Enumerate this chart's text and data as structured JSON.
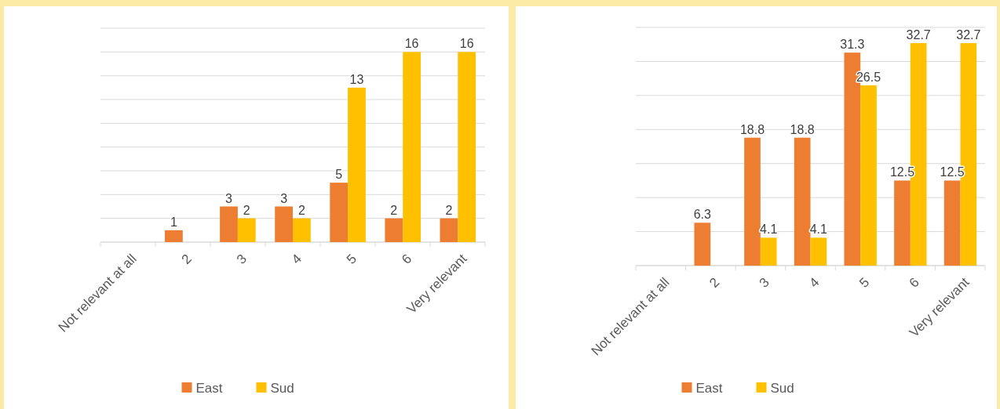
{
  "chart_data": [
    {
      "type": "bar",
      "categories": [
        "Not relevant at all",
        "2",
        "3",
        "4",
        "5",
        "6",
        "Very relevant"
      ],
      "series": [
        {
          "name": "East",
          "color": "#ed7d31",
          "values": [
            null,
            1,
            3,
            3,
            5,
            2,
            2
          ]
        },
        {
          "name": "Sud",
          "color": "#ffc000",
          "values": [
            null,
            null,
            2,
            2,
            13,
            16,
            16
          ]
        }
      ],
      "ylim": [
        0,
        18
      ],
      "yticks": [
        {
          "value": 0,
          "label": null
        },
        {
          "value": 2,
          "label": null
        },
        {
          "value": 4,
          "label": null
        },
        {
          "value": 6,
          "label": null
        },
        {
          "value": 8,
          "label": null
        },
        {
          "value": 10,
          "label": null
        },
        {
          "value": 12,
          "label": null
        },
        {
          "value": 14,
          "label": null
        },
        {
          "value": 16,
          "label": null
        },
        {
          "value": 18,
          "label": null
        }
      ],
      "tick_labels": "x",
      "grid": "y",
      "legend": "bottom",
      "data_labels": true
    },
    {
      "type": "bar",
      "categories": [
        "Not relevant at all",
        "2",
        "3",
        "4",
        "5",
        "6",
        "Very relevant"
      ],
      "series": [
        {
          "name": "East",
          "color": "#ed7d31",
          "values": [
            null,
            6.3,
            18.8,
            18.8,
            31.3,
            12.5,
            12.5
          ]
        },
        {
          "name": "Sud",
          "color": "#ffc000",
          "values": [
            null,
            null,
            4.1,
            4.1,
            26.5,
            32.7,
            32.7
          ]
        }
      ],
      "ylim": [
        0,
        35
      ],
      "yticks": [
        {
          "value": 0,
          "label": null
        },
        {
          "value": 5,
          "label": null
        },
        {
          "value": 10,
          "label": null
        },
        {
          "value": 15,
          "label": null
        },
        {
          "value": 20,
          "label": null
        },
        {
          "value": 25,
          "label": null
        },
        {
          "value": 30,
          "label": null
        },
        {
          "value": 35,
          "label": null
        }
      ],
      "tick_labels": "x",
      "grid": "y",
      "legend": "bottom",
      "data_labels": true
    }
  ]
}
